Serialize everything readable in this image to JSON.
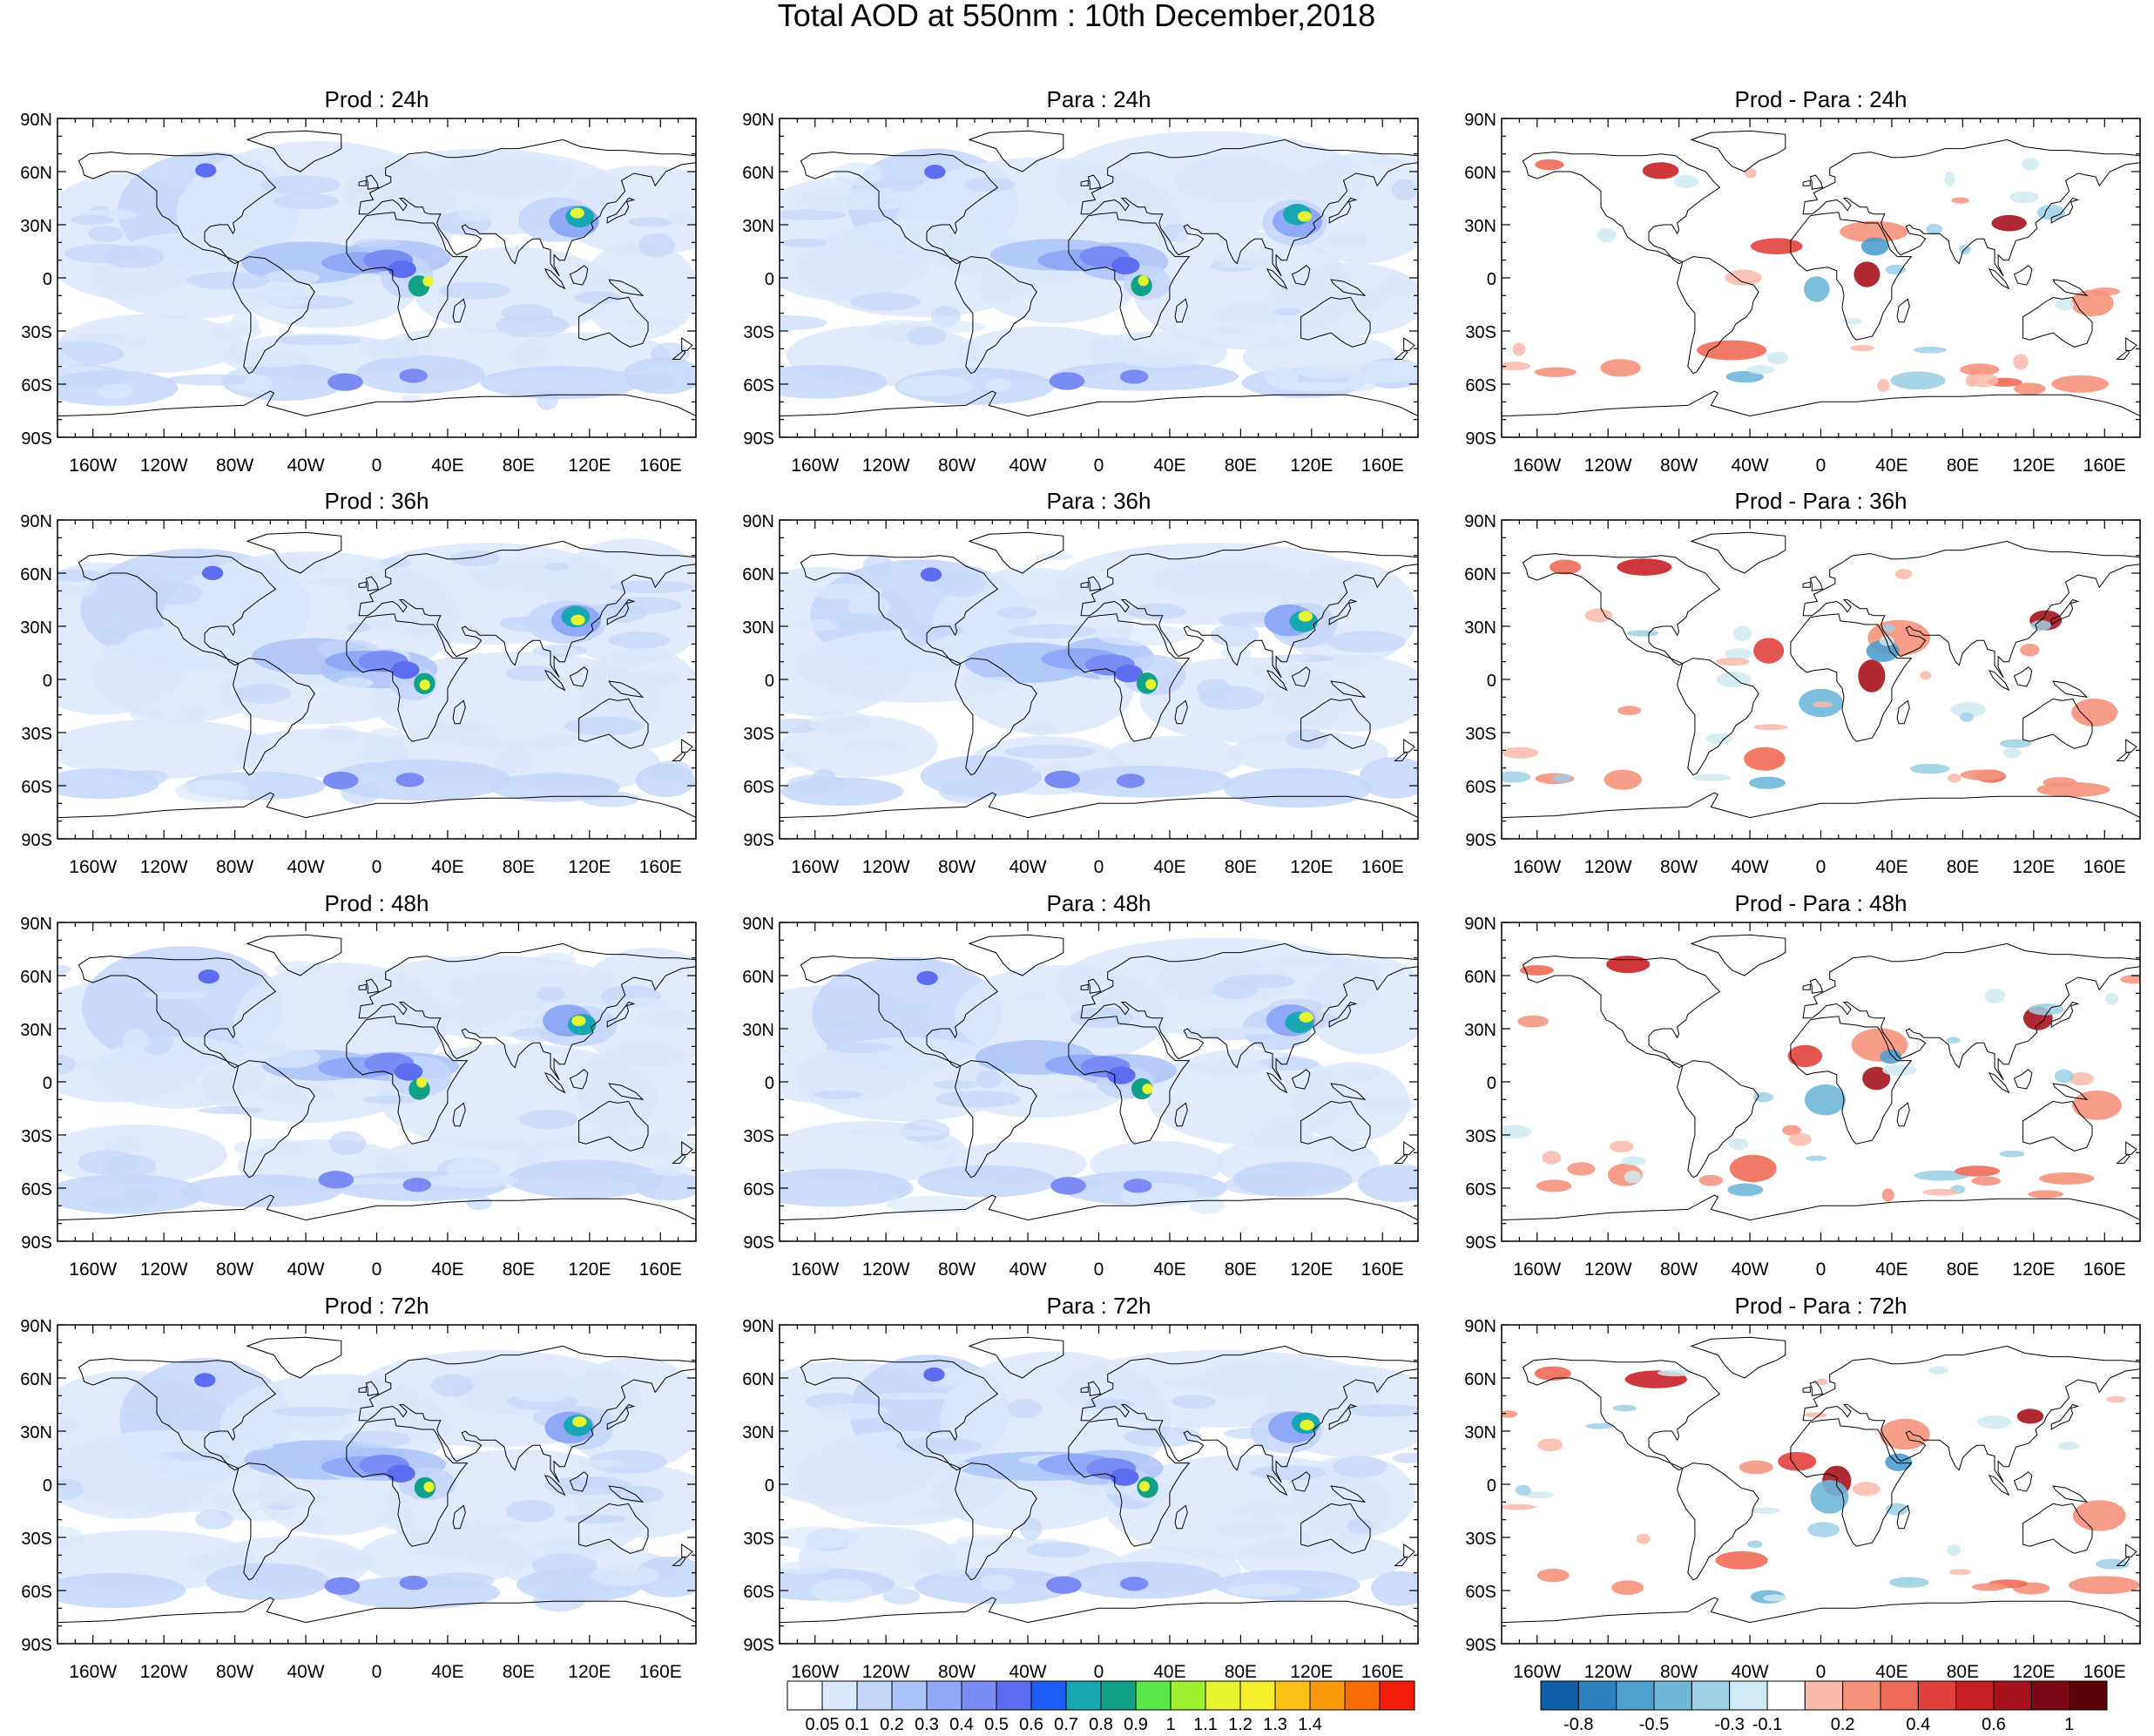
{
  "title": "Total AOD at 550nm : 10th December,2018",
  "panels": [
    {
      "title": "Prod : 24h",
      "kind": "aod",
      "seed": 11
    },
    {
      "title": "Para : 24h",
      "kind": "aod",
      "seed": 12
    },
    {
      "title": "Prod - Para : 24h",
      "kind": "diff",
      "seed": 13
    },
    {
      "title": "Prod : 36h",
      "kind": "aod",
      "seed": 21
    },
    {
      "title": "Para : 36h",
      "kind": "aod",
      "seed": 22
    },
    {
      "title": "Prod - Para : 36h",
      "kind": "diff",
      "seed": 23
    },
    {
      "title": "Prod : 48h",
      "kind": "aod",
      "seed": 31
    },
    {
      "title": "Para : 48h",
      "kind": "aod",
      "seed": 32
    },
    {
      "title": "Prod - Para : 48h",
      "kind": "diff",
      "seed": 33
    },
    {
      "title": "Prod : 72h",
      "kind": "aod",
      "seed": 41
    },
    {
      "title": "Para : 72h",
      "kind": "aod",
      "seed": 42
    },
    {
      "title": "Prod - Para : 72h",
      "kind": "diff",
      "seed": 43
    }
  ],
  "lat_labels": [
    "90N",
    "60N",
    "30N",
    "0",
    "30S",
    "60S",
    "90S"
  ],
  "lon_labels": [
    "160W",
    "120W",
    "80W",
    "40W",
    "0",
    "40E",
    "80E",
    "120E",
    "160E"
  ],
  "aod_colorbar": {
    "labels": [
      "0.05",
      "0.1",
      "0.2",
      "0.3",
      "0.4",
      "0.5",
      "0.6",
      "0.7",
      "0.8",
      "0.9",
      "1",
      "1.1",
      "1.2",
      "1.3",
      "1.4"
    ],
    "colors": [
      "#ffffff",
      "#dce8fb",
      "#c6d6fa",
      "#acc3f9",
      "#8fa9f7",
      "#7a8cf3",
      "#5c6df0",
      "#1f5ef6",
      "#17a6b2",
      "#12a086",
      "#58e84a",
      "#9ff031",
      "#e6f52f",
      "#f6f02c",
      "#f9c016",
      "#f99a0d",
      "#f86d08",
      "#f51e0c"
    ]
  },
  "diff_colorbar": {
    "labels": [
      "-0.8",
      "-0.5",
      "-0.3",
      "-0.1",
      "0.2",
      "0.4",
      "0.6",
      "1"
    ],
    "colors": [
      "#1060a8",
      "#2f82c0",
      "#4f9fce",
      "#6fb7d9",
      "#9dd0e6",
      "#cfeaf2",
      "#ffffff",
      "#f8b9aa",
      "#f4927c",
      "#ee6a58",
      "#e1413d",
      "#c82026",
      "#a5121c",
      "#7b0812",
      "#5a030b"
    ]
  }
}
